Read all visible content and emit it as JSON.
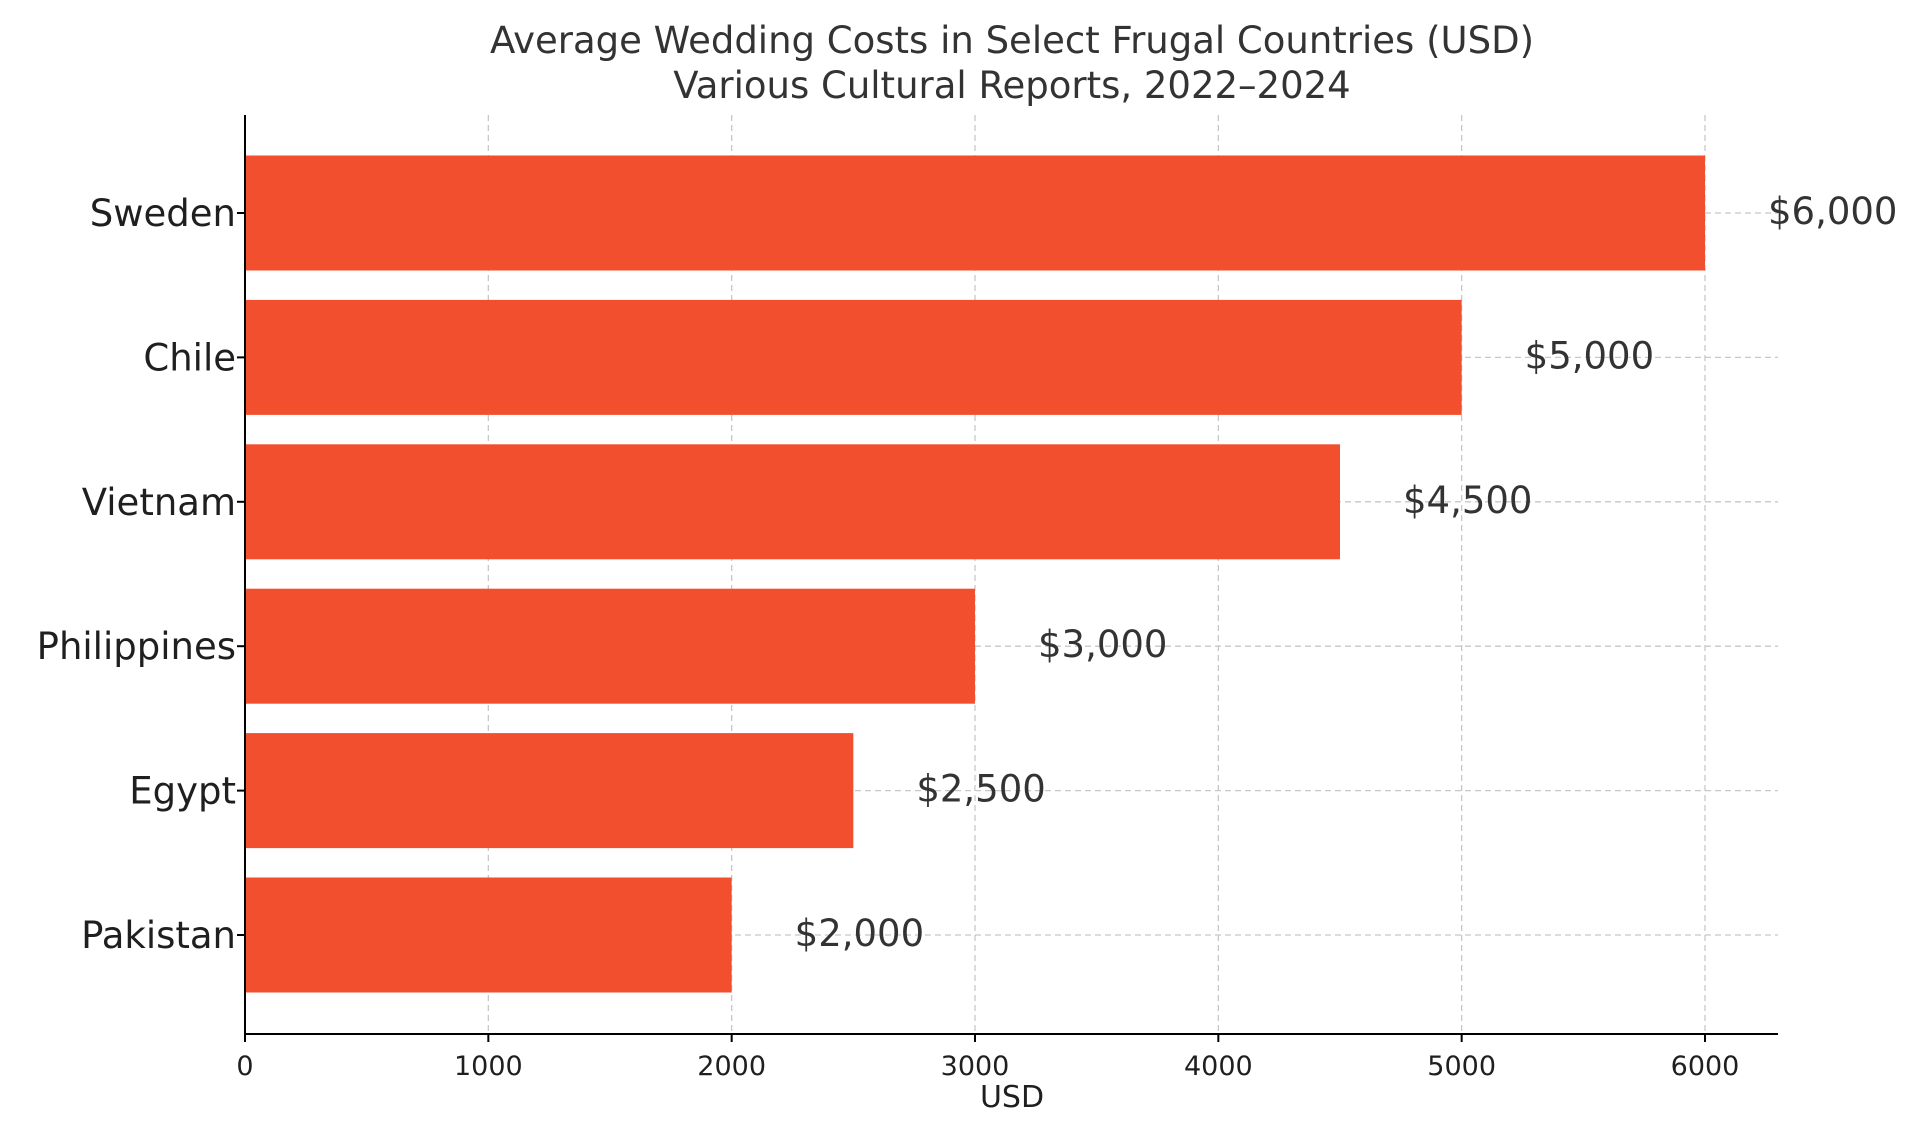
{
  "chart_data": {
    "type": "bar",
    "orientation": "horizontal",
    "title": "Average Wedding Costs in Select Frugal Countries (USD)",
    "subtitle": "Various Cultural Reports, 2022–2024",
    "xlabel": "USD",
    "ylabel": "",
    "categories": [
      "Sweden",
      "Chile",
      "Vietnam",
      "Philippines",
      "Egypt",
      "Pakistan"
    ],
    "values": [
      6000,
      5000,
      4500,
      3000,
      2500,
      2000
    ],
    "value_labels": [
      "$6,000",
      "$5,000",
      "$4,500",
      "$3,000",
      "$2,500",
      "$2,000"
    ],
    "xlim": [
      0,
      6300
    ],
    "xticks": [
      0,
      1000,
      2000,
      3000,
      4000,
      5000,
      6000
    ],
    "xtick_labels": [
      "0",
      "1000",
      "2000",
      "3000",
      "4000",
      "5000",
      "6000"
    ],
    "grid": true,
    "bar_color": "#f24f2f"
  }
}
